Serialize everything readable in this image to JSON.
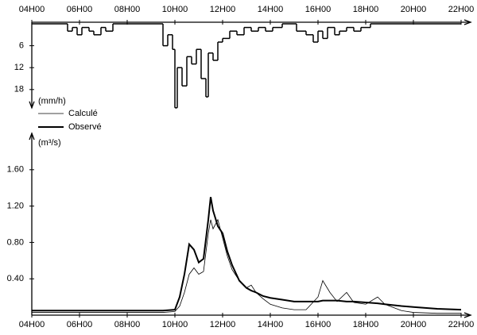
{
  "chart_data": [
    {
      "type": "step",
      "ylabel": "(mm/h)",
      "color": "#000000",
      "x": [
        4,
        5.5,
        5.7,
        5.9,
        6.1,
        6.4,
        6.6,
        6.9,
        7.1,
        7.4,
        9.5,
        9.7,
        9.9,
        10.0,
        10.1,
        10.3,
        10.5,
        10.7,
        10.9,
        11.1,
        11.3,
        11.4,
        11.6,
        11.8,
        12.0,
        12.3,
        12.6,
        12.9,
        13.2,
        13.5,
        13.8,
        14.1,
        14.5,
        15.1,
        15.5,
        15.8,
        16.0,
        16.2,
        16.4,
        16.7,
        16.9,
        17.2,
        17.5,
        17.8,
        18.2,
        22
      ],
      "values": [
        0,
        2,
        1,
        3,
        1,
        2,
        3,
        1,
        2,
        0,
        6,
        3,
        7,
        23,
        12,
        17,
        9,
        11,
        7,
        15,
        20,
        8,
        10,
        5,
        4,
        2,
        3,
        1,
        2,
        1,
        2,
        1,
        0,
        2,
        3,
        5,
        2,
        4,
        1,
        3,
        2,
        1,
        2,
        1,
        0,
        0
      ],
      "xlim": [
        4,
        22
      ],
      "ylim": [
        0,
        23
      ],
      "xticks": [
        {
          "value": 4,
          "label": "04H00"
        },
        {
          "value": 6,
          "label": "06H00"
        },
        {
          "value": 8,
          "label": "08H00"
        },
        {
          "value": 10,
          "label": "10H00"
        },
        {
          "value": 12,
          "label": "12H00"
        },
        {
          "value": 14,
          "label": "14H00"
        },
        {
          "value": 16,
          "label": "16H00"
        },
        {
          "value": 18,
          "label": "18H00"
        },
        {
          "value": 20,
          "label": "20H00"
        },
        {
          "value": 22,
          "label": "22H00"
        }
      ],
      "yticks": [
        6,
        12,
        18
      ]
    },
    {
      "type": "line",
      "ylabel": "(m³/s)",
      "x": [
        4,
        6,
        8,
        9.5,
        10,
        10.2,
        10.4,
        10.6,
        10.8,
        11,
        11.2,
        11.4,
        11.5,
        11.6,
        11.8,
        12,
        12.2,
        12.4,
        12.7,
        13,
        13.2,
        13.4,
        13.7,
        14,
        14.5,
        15,
        15.5,
        16,
        16.2,
        16.5,
        16.8,
        17.2,
        17.5,
        18,
        18.5,
        18.8,
        19.5,
        20,
        21,
        22
      ],
      "series": [
        {
          "name": "Calculé",
          "color": "#000000",
          "width": 0.8,
          "values": [
            0.03,
            0.03,
            0.03,
            0.03,
            0.04,
            0.1,
            0.25,
            0.45,
            0.52,
            0.45,
            0.48,
            0.9,
            1.05,
            0.95,
            1.05,
            0.85,
            0.65,
            0.5,
            0.38,
            0.3,
            0.33,
            0.25,
            0.18,
            0.12,
            0.08,
            0.06,
            0.06,
            0.2,
            0.38,
            0.25,
            0.15,
            0.25,
            0.14,
            0.12,
            0.2,
            0.12,
            0.05,
            0.03,
            0.02,
            0.02
          ]
        },
        {
          "name": "Observé",
          "color": "#000000",
          "width": 2,
          "values": [
            0.05,
            0.05,
            0.05,
            0.05,
            0.06,
            0.2,
            0.45,
            0.78,
            0.72,
            0.58,
            0.62,
            1.05,
            1.3,
            1.15,
            0.98,
            0.9,
            0.7,
            0.55,
            0.38,
            0.3,
            0.27,
            0.25,
            0.21,
            0.19,
            0.17,
            0.15,
            0.15,
            0.15,
            0.16,
            0.16,
            0.16,
            0.15,
            0.15,
            0.14,
            0.13,
            0.12,
            0.1,
            0.09,
            0.07,
            0.06
          ]
        }
      ],
      "xlim": [
        4,
        22
      ],
      "ylim": [
        0,
        2.0
      ],
      "xticks": [
        {
          "value": 4,
          "label": "04H00"
        },
        {
          "value": 6,
          "label": "06H00"
        },
        {
          "value": 8,
          "label": "08H00"
        },
        {
          "value": 10,
          "label": "10H00"
        },
        {
          "value": 12,
          "label": "12H00"
        },
        {
          "value": 14,
          "label": "14H00"
        },
        {
          "value": 16,
          "label": "16H00"
        },
        {
          "value": 18,
          "label": "18H00"
        },
        {
          "value": 20,
          "label": "20H00"
        },
        {
          "value": 22,
          "label": "22H00"
        }
      ],
      "yticks": [
        {
          "value": 0.4,
          "label": "0.40"
        },
        {
          "value": 0.8,
          "label": "0.80"
        },
        {
          "value": 1.2,
          "label": "1.20"
        },
        {
          "value": 1.6,
          "label": "1.60"
        }
      ]
    }
  ]
}
